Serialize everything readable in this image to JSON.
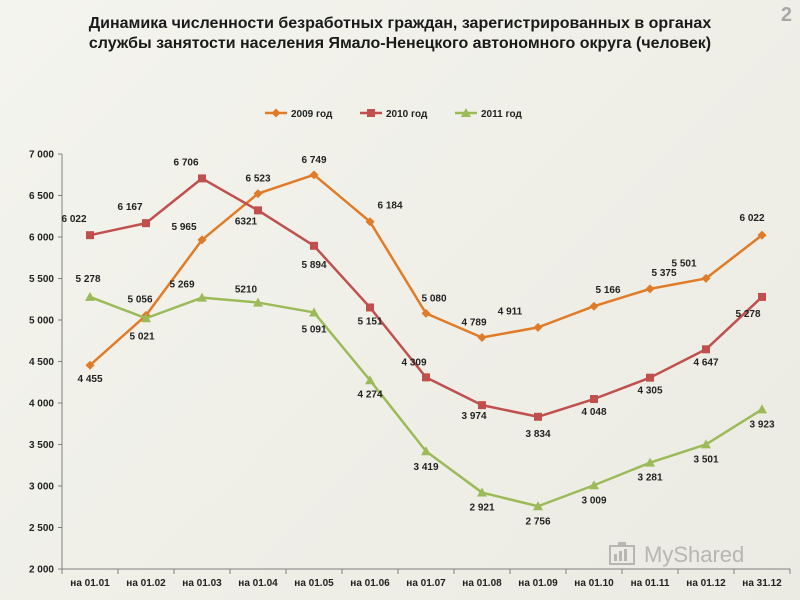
{
  "page": {
    "title_line1": "Динамика численности безработных граждан, зарегистрированных в органах",
    "title_line2": "службы занятости населения Ямало-Ненецкого автономного округа (человек)",
    "page_number": "2",
    "logo_text": "MyShared"
  },
  "chart_data": {
    "type": "line",
    "title": "Динамика численности безработных граждан, зарегистрированных в органах службы занятости населения Ямало-Ненецкого автономного округа (человек)",
    "categories": [
      "на 01.01",
      "на 01.02",
      "на 01.03",
      "на 01.04",
      "на 01.05",
      "на 01.06",
      "на 01.07",
      "на 01.08",
      "на 01.09",
      "на 01.10",
      "на 01.11",
      "на 01.12",
      "на 31.12"
    ],
    "ylim": [
      2000,
      7000
    ],
    "yticks": [
      "2 000",
      "2 500",
      "3 000",
      "3 500",
      "4 000",
      "4 500",
      "5 000",
      "5 500",
      "6 000",
      "6 500",
      "7 000"
    ],
    "legend_position": "top",
    "series": [
      {
        "name": "2009 год",
        "color": "#e07b27",
        "marker": "diamond",
        "values": [
          4455,
          5056,
          5965,
          6523,
          6749,
          6184,
          5080,
          4789,
          4911,
          5166,
          5375,
          5501,
          6022
        ],
        "labels": [
          "4 455",
          "5 056",
          "5 965",
          "6 523",
          "6 749",
          "6 184",
          "5 080",
          "4 789",
          "4 911",
          "5 166",
          "5 375",
          "5 501",
          "6 022"
        ]
      },
      {
        "name": "2010 год",
        "color": "#c0504d",
        "marker": "square",
        "values": [
          6022,
          6167,
          6706,
          6321,
          5894,
          5151,
          4309,
          3974,
          3834,
          4048,
          4305,
          4647,
          5278
        ],
        "labels": [
          "6 022",
          "6 167",
          "6 706",
          "6321",
          "5 894",
          "5 151",
          "4 309",
          "3 974",
          "3 834",
          "4 048",
          "4 305",
          "4 647",
          "5 278"
        ]
      },
      {
        "name": "2011 год",
        "color": "#9bbb59",
        "marker": "triangle",
        "values": [
          5278,
          5021,
          5269,
          5210,
          5091,
          4274,
          3419,
          2921,
          2756,
          3009,
          3281,
          3501,
          3923
        ],
        "labels": [
          "5 278",
          "5 021",
          "5 269",
          "5210",
          "5 091",
          "4 274",
          "3 419",
          "2 921",
          "2 756",
          "3 009",
          "3 281",
          "3 501",
          "3 923"
        ]
      }
    ]
  }
}
